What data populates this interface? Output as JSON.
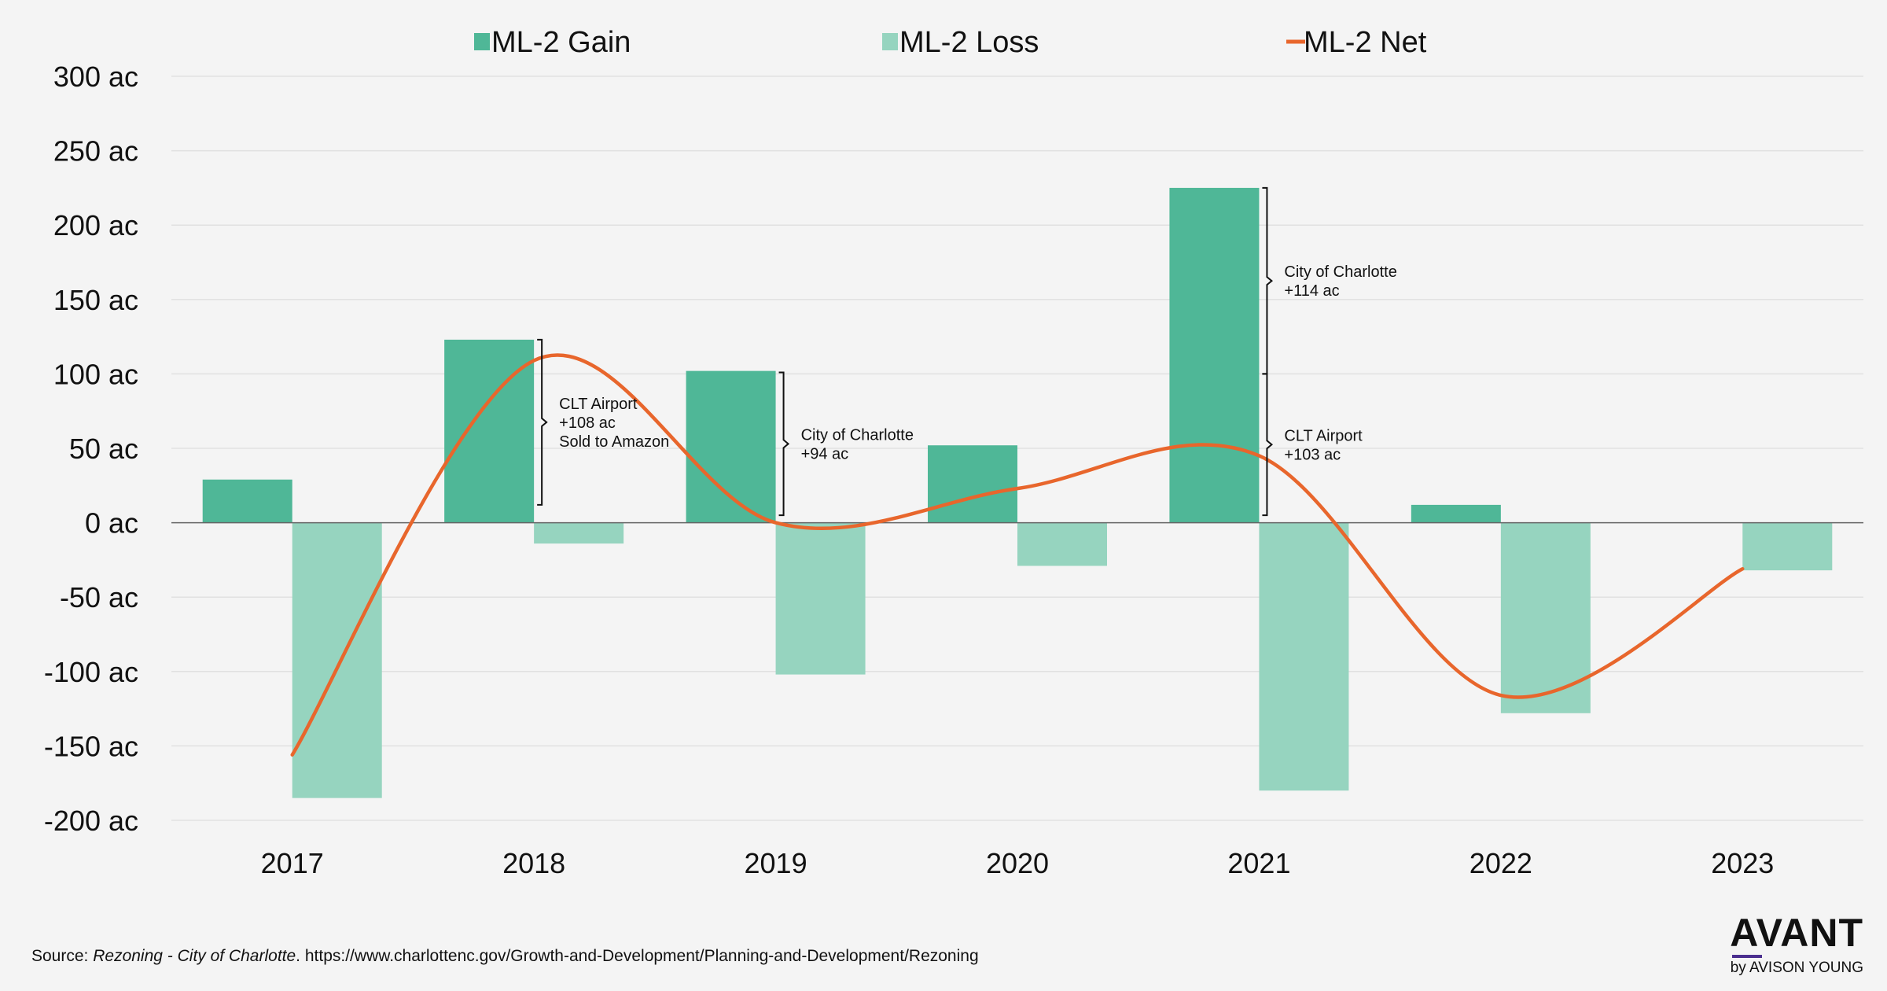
{
  "chart_data": {
    "type": "bar",
    "categories": [
      "2017",
      "2018",
      "2019",
      "2020",
      "2021",
      "2022",
      "2023"
    ],
    "series": [
      {
        "name": "ML-2 Gain",
        "type": "bar",
        "color": "#4fb797",
        "values": [
          29,
          123,
          102,
          52,
          225,
          12,
          0
        ]
      },
      {
        "name": "ML-2 Loss",
        "type": "bar",
        "color": "#96d4bf",
        "values": [
          -185,
          -14,
          -102,
          -29,
          -180,
          -128,
          -32
        ]
      },
      {
        "name": "ML-2 Net",
        "type": "line",
        "color": "#e8662c",
        "values": [
          -156,
          109,
          0,
          23,
          45,
          -116,
          -31
        ]
      }
    ],
    "y_tick_values": [
      300,
      250,
      200,
      150,
      100,
      50,
      0,
      -50,
      -100,
      -150,
      -200
    ],
    "y_tick_labels": [
      "300 ac",
      "250 ac",
      "200 ac",
      "150 ac",
      "100 ac",
      "50 ac",
      "0 ac",
      "-50 ac",
      "-100 ac",
      "-150 ac",
      "-200 ac"
    ],
    "ylim": [
      -200,
      300
    ],
    "grid": true,
    "legend_position": "top",
    "annotations": [
      {
        "category": "2018",
        "from": 12,
        "to": 123,
        "lines": [
          "CLT Airport",
          "+108 ac",
          "Sold to Amazon"
        ]
      },
      {
        "category": "2019",
        "from": 5,
        "to": 101,
        "lines": [
          "City of Charlotte",
          "+94 ac"
        ]
      },
      {
        "category": "2021",
        "from": 100,
        "to": 225,
        "lines": [
          "City of Charlotte",
          "+114 ac"
        ]
      },
      {
        "category": "2021",
        "from": 5,
        "to": 100,
        "lines": [
          "CLT Airport",
          "+103 ac"
        ]
      }
    ]
  },
  "source": {
    "prefix": "Source: ",
    "title": "Rezoning - City of Charlotte",
    "suffix": ". https://www.charlottenc.gov/Growth-and-Development/Planning-and-Development/Rezoning"
  },
  "logo": {
    "brand": "AVANT",
    "sub": "by AVISON YOUNG"
  }
}
